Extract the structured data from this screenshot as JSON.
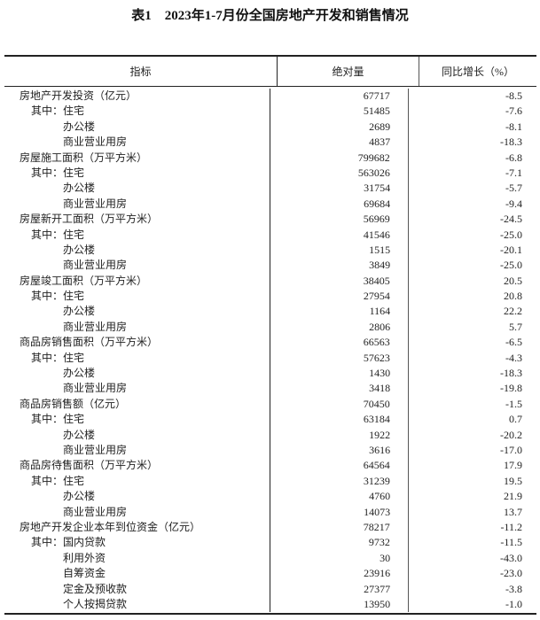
{
  "title": "表1　2023年1-7月份全国房地产开发和销售情况",
  "headers": {
    "indicator": "指标",
    "absolute": "绝对量",
    "yoy": "同比增长（%）"
  },
  "rows": [
    {
      "label": "房地产开发投资（亿元）",
      "level": 0,
      "value": "67717",
      "change": "-8.5"
    },
    {
      "label": "其中：住宅",
      "level": 1,
      "value": "51485",
      "change": "-7.6"
    },
    {
      "label": "办公楼",
      "level": 2,
      "value": "2689",
      "change": "-8.1"
    },
    {
      "label": "商业营业用房",
      "level": 2,
      "value": "4837",
      "change": "-18.3"
    },
    {
      "label": "房屋施工面积（万平方米）",
      "level": 0,
      "value": "799682",
      "change": "-6.8"
    },
    {
      "label": "其中：住宅",
      "level": 1,
      "value": "563026",
      "change": "-7.1"
    },
    {
      "label": "办公楼",
      "level": 2,
      "value": "31754",
      "change": "-5.7"
    },
    {
      "label": "商业营业用房",
      "level": 2,
      "value": "69684",
      "change": "-9.4"
    },
    {
      "label": "房屋新开工面积（万平方米）",
      "level": 0,
      "value": "56969",
      "change": "-24.5"
    },
    {
      "label": "其中：住宅",
      "level": 1,
      "value": "41546",
      "change": "-25.0"
    },
    {
      "label": "办公楼",
      "level": 2,
      "value": "1515",
      "change": "-20.1"
    },
    {
      "label": "商业营业用房",
      "level": 2,
      "value": "3849",
      "change": "-25.0"
    },
    {
      "label": "房屋竣工面积（万平方米）",
      "level": 0,
      "value": "38405",
      "change": "20.5"
    },
    {
      "label": "其中：住宅",
      "level": 1,
      "value": "27954",
      "change": "20.8"
    },
    {
      "label": "办公楼",
      "level": 2,
      "value": "1164",
      "change": "22.2"
    },
    {
      "label": "商业营业用房",
      "level": 2,
      "value": "2806",
      "change": "5.7"
    },
    {
      "label": "商品房销售面积（万平方米）",
      "level": 0,
      "value": "66563",
      "change": "-6.5"
    },
    {
      "label": "其中：住宅",
      "level": 1,
      "value": "57623",
      "change": "-4.3"
    },
    {
      "label": "办公楼",
      "level": 2,
      "value": "1430",
      "change": "-18.3"
    },
    {
      "label": "商业营业用房",
      "level": 2,
      "value": "3418",
      "change": "-19.8"
    },
    {
      "label": "商品房销售额（亿元）",
      "level": 0,
      "value": "70450",
      "change": "-1.5"
    },
    {
      "label": "其中：住宅",
      "level": 1,
      "value": "63184",
      "change": "0.7"
    },
    {
      "label": "办公楼",
      "level": 2,
      "value": "1922",
      "change": "-20.2"
    },
    {
      "label": "商业营业用房",
      "level": 2,
      "value": "3616",
      "change": "-17.0"
    },
    {
      "label": "商品房待售面积（万平方米）",
      "level": 0,
      "value": "64564",
      "change": "17.9"
    },
    {
      "label": "其中：住宅",
      "level": 1,
      "value": "31239",
      "change": "19.5"
    },
    {
      "label": "办公楼",
      "level": 2,
      "value": "4760",
      "change": "21.9"
    },
    {
      "label": "商业营业用房",
      "level": 2,
      "value": "14073",
      "change": "13.7"
    },
    {
      "label": "房地产开发企业本年到位资金（亿元）",
      "level": 0,
      "value": "78217",
      "change": "-11.2"
    },
    {
      "label": "其中：国内贷款",
      "level": 1,
      "value": "9732",
      "change": "-11.5"
    },
    {
      "label": "利用外资",
      "level": 2,
      "value": "30",
      "change": "-43.0"
    },
    {
      "label": "自筹资金",
      "level": 2,
      "value": "23916",
      "change": "-23.0"
    },
    {
      "label": "定金及预收款",
      "level": 2,
      "value": "27377",
      "change": "-3.8"
    },
    {
      "label": "个人按揭贷款",
      "level": 2,
      "value": "13950",
      "change": "-1.0"
    }
  ]
}
